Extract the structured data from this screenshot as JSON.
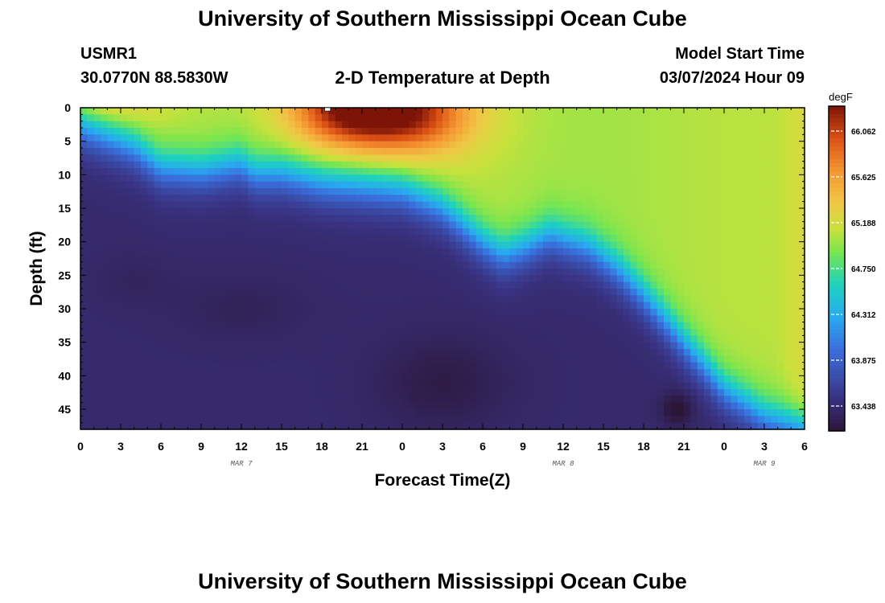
{
  "header": {
    "main_title": "University of Southern Mississippi Ocean Cube",
    "station_id": "USMR1",
    "coordinates": "30.0770N  88.5830W",
    "plot_title": "2-D Temperature at Depth",
    "model_label": "Model Start Time",
    "model_time": "03/07/2024 Hour 09",
    "footer_title": "University of Southern Mississippi Ocean Cube"
  },
  "chart_data": {
    "type": "heatmap",
    "title": "2-D Temperature at Depth",
    "xlabel": "Forecast Time(Z)",
    "ylabel": "Depth (ft)",
    "x_tick_labels": [
      "0",
      "3",
      "6",
      "9",
      "12",
      "15",
      "18",
      "21",
      "0",
      "3",
      "6",
      "9",
      "12",
      "15",
      "18",
      "21",
      "0",
      "3",
      "6"
    ],
    "x_date_labels": [
      {
        "label": "MAR 7",
        "forecast_hour": 12
      },
      {
        "label": "MAR 8",
        "forecast_hour": 36
      },
      {
        "label": "MAR 9",
        "forecast_hour": 51
      }
    ],
    "x_range_hours": [
      0,
      54
    ],
    "y_ticks": [
      0,
      5,
      10,
      15,
      20,
      25,
      30,
      35,
      40,
      45
    ],
    "ylim": [
      0,
      48
    ],
    "colorbar": {
      "unit": "degF",
      "ticks": [
        "66.062",
        "65.625",
        "65.188",
        "64.750",
        "64.312",
        "63.875",
        "63.438"
      ],
      "range": [
        63.2,
        66.3
      ]
    },
    "thermocline_control": [
      {
        "hour": 0,
        "depth": 3
      },
      {
        "hour": 4,
        "depth": 6
      },
      {
        "hour": 6,
        "depth": 9
      },
      {
        "hour": 9,
        "depth": 9.5
      },
      {
        "hour": 12,
        "depth": 8.5
      },
      {
        "hour": 13,
        "depth": 10
      },
      {
        "hour": 15,
        "depth": 10
      },
      {
        "hour": 18,
        "depth": 11.5
      },
      {
        "hour": 21,
        "depth": 12
      },
      {
        "hour": 24,
        "depth": 12.5
      },
      {
        "hour": 27,
        "depth": 15
      },
      {
        "hour": 30,
        "depth": 20
      },
      {
        "hour": 31.5,
        "depth": 22
      },
      {
        "hour": 33,
        "depth": 21
      },
      {
        "hour": 35,
        "depth": 19
      },
      {
        "hour": 38,
        "depth": 21
      },
      {
        "hour": 40,
        "depth": 24
      },
      {
        "hour": 42,
        "depth": 28
      },
      {
        "hour": 45,
        "depth": 35
      },
      {
        "hour": 48,
        "depth": 42
      },
      {
        "hour": 51,
        "depth": 46
      },
      {
        "hour": 54,
        "depth": 48
      }
    ],
    "upper_layer_hotspots": [
      {
        "hour": 20,
        "depth": 0,
        "peak_degF": 66.25
      },
      {
        "hour": 25,
        "depth": 1,
        "peak_degF": 66.0
      }
    ],
    "cold_core": {
      "hour": 27,
      "depth": 41,
      "min_degF": 63.2
    }
  }
}
